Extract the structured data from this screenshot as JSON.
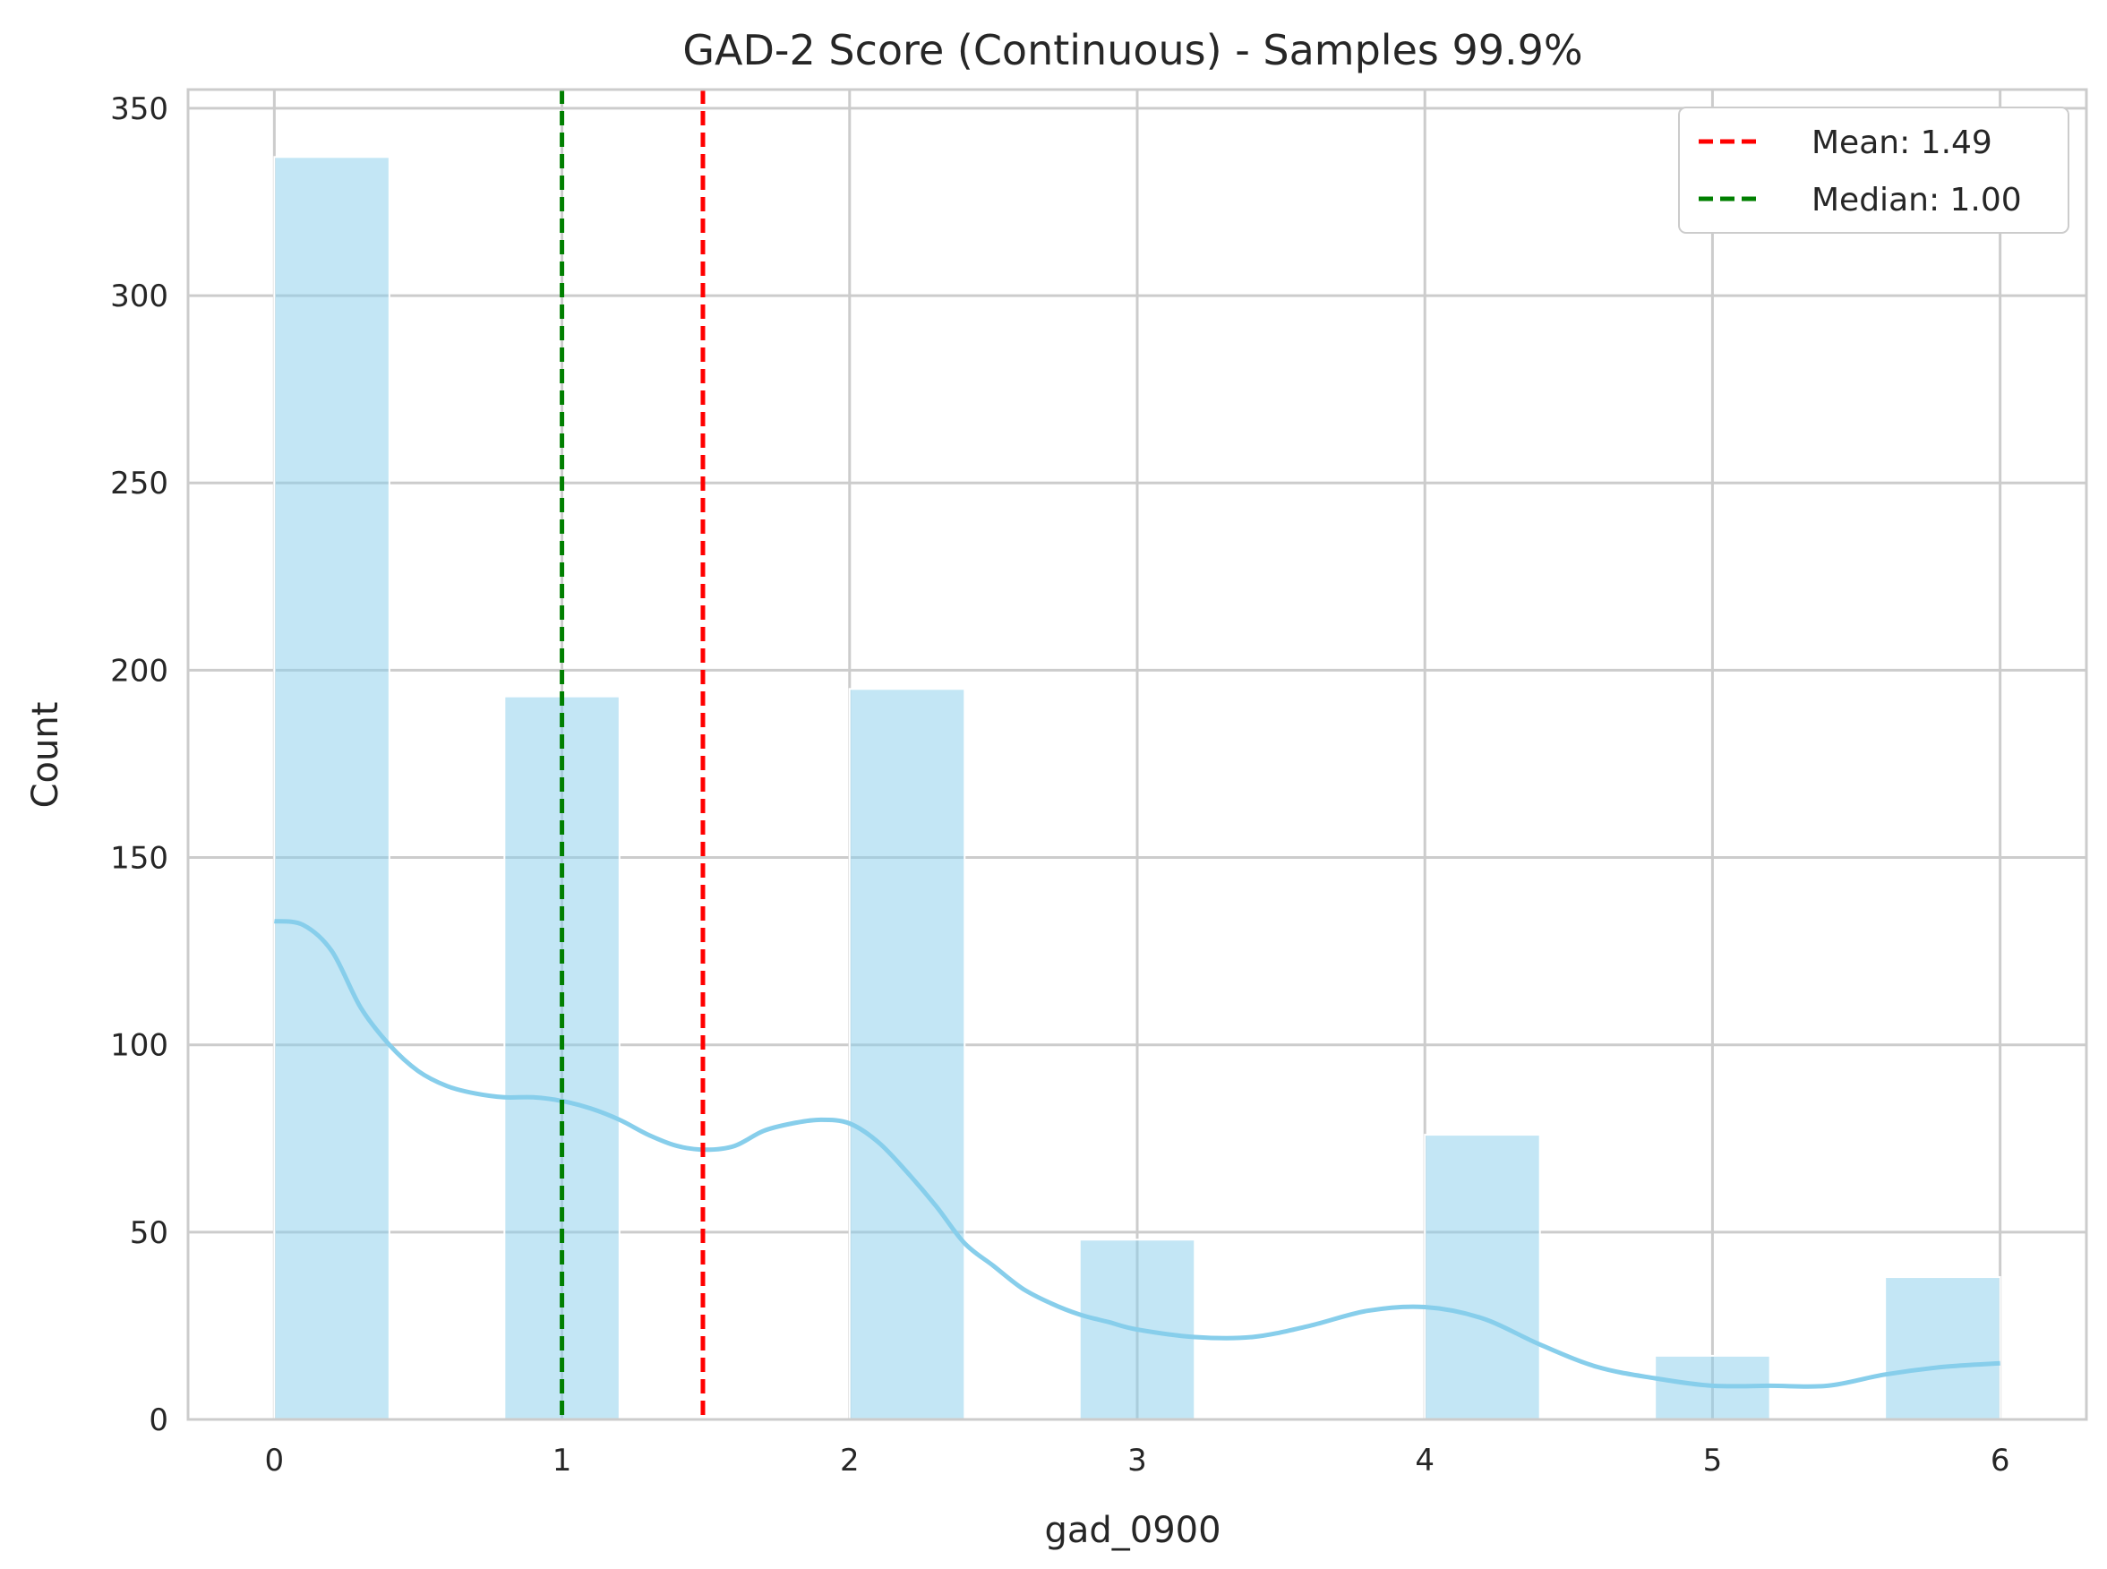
{
  "chart_data": {
    "type": "bar",
    "title": "GAD-2 Score (Continuous) - Samples 99.9%",
    "xlabel": "gad_0900",
    "ylabel": "Count",
    "xlim": [
      -0.3,
      6.3
    ],
    "ylim": [
      0,
      355
    ],
    "xticks": [
      0,
      1,
      2,
      3,
      4,
      5,
      6
    ],
    "yticks": [
      0,
      50,
      100,
      150,
      200,
      250,
      300,
      350
    ],
    "grid": true,
    "legend_position": "top-right",
    "bar_color": "#87CEEB",
    "bins": [
      {
        "x0": 0.0,
        "x1": 0.4,
        "count": 337
      },
      {
        "x0": 0.8,
        "x1": 1.2,
        "count": 193
      },
      {
        "x0": 2.0,
        "x1": 2.4,
        "count": 195
      },
      {
        "x0": 2.8,
        "x1": 3.2,
        "count": 48
      },
      {
        "x0": 4.0,
        "x1": 4.4,
        "count": 76
      },
      {
        "x0": 4.8,
        "x1": 5.2,
        "count": 17
      },
      {
        "x0": 5.6,
        "x1": 6.0,
        "count": 38
      }
    ],
    "kde": {
      "color": "#87CEEB",
      "x": [
        0.0,
        0.1,
        0.2,
        0.3,
        0.4,
        0.5,
        0.6,
        0.7,
        0.8,
        0.9,
        1.0,
        1.1,
        1.2,
        1.3,
        1.4,
        1.5,
        1.6,
        1.7,
        1.8,
        1.9,
        2.0,
        2.1,
        2.2,
        2.3,
        2.4,
        2.5,
        2.6,
        2.7,
        2.8,
        2.9,
        3.0,
        3.2,
        3.4,
        3.6,
        3.8,
        4.0,
        4.2,
        4.4,
        4.6,
        4.8,
        5.0,
        5.2,
        5.4,
        5.6,
        5.8,
        6.0
      ],
      "y": [
        133,
        132,
        125,
        110,
        100,
        93,
        89,
        87,
        86,
        86,
        85,
        83,
        80,
        76,
        73,
        72,
        73,
        77,
        79,
        80,
        79,
        74,
        66,
        57,
        47,
        41,
        35,
        31,
        28,
        26,
        24,
        22,
        22,
        25,
        29,
        30,
        27,
        20,
        14,
        11,
        9,
        9,
        9,
        12,
        14,
        15
      ]
    },
    "lines": [
      {
        "name": "Mean: 1.49",
        "x": 1.49,
        "color": "#ff0000",
        "style": "dashed"
      },
      {
        "name": "Median: 1.00",
        "x": 1.0,
        "color": "#007f00",
        "style": "dashed"
      }
    ]
  }
}
